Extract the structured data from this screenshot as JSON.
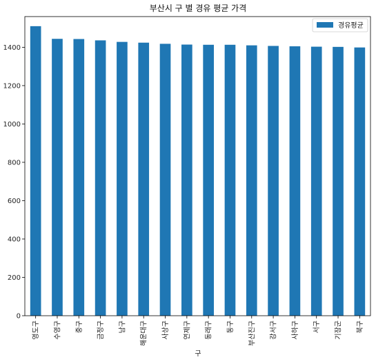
{
  "chart_data": {
    "type": "bar",
    "title": "부산시 구 별 경유 평균 가격",
    "xlabel": "구",
    "ylabel": "",
    "categories": [
      "영도구",
      "수영구",
      "중구",
      "금정구",
      "남구",
      "해운대구",
      "사상구",
      "연제구",
      "동래구",
      "동구",
      "부산진구",
      "강서구",
      "사하구",
      "서구",
      "기장군",
      "북구"
    ],
    "series": [
      {
        "name": "경유평균",
        "values": [
          1510,
          1444,
          1443,
          1436,
          1428,
          1424,
          1418,
          1414,
          1413,
          1413,
          1410,
          1407,
          1405,
          1403,
          1402,
          1399
        ],
        "color": "#1f77b4"
      }
    ],
    "ylim": [
      0,
      1560
    ],
    "yticks": [
      0,
      200,
      400,
      600,
      800,
      1000,
      1200,
      1400
    ],
    "legend_position": "top-right",
    "grid": false
  }
}
